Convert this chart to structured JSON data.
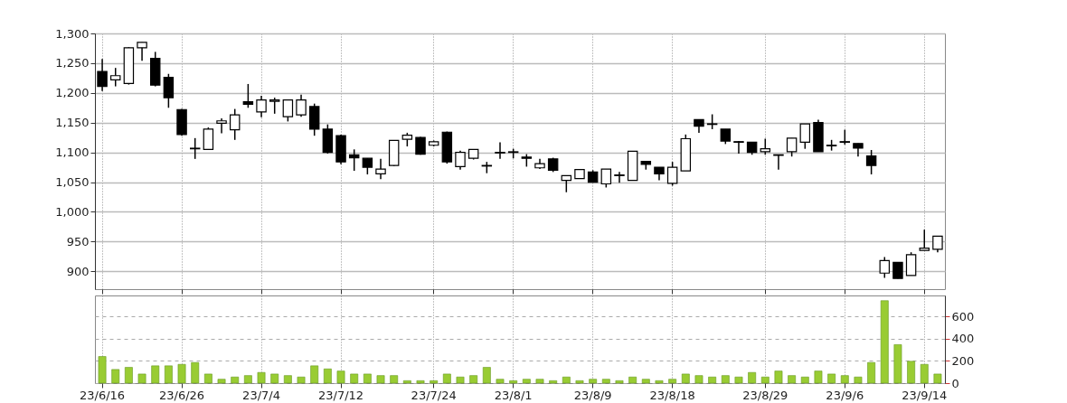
{
  "chart_data": [
    {
      "type": "candlestick",
      "categories": [
        "23/6/16",
        null,
        null,
        null,
        null,
        null,
        "23/6/26",
        null,
        null,
        null,
        null,
        null,
        "23/7/4",
        null,
        null,
        null,
        null,
        null,
        "23/7/12",
        null,
        null,
        null,
        null,
        null,
        null,
        "23/7/24",
        null,
        null,
        null,
        null,
        null,
        "23/8/1",
        null,
        null,
        null,
        null,
        null,
        "23/8/9",
        null,
        null,
        null,
        null,
        null,
        "23/8/18",
        null,
        null,
        null,
        null,
        null,
        null,
        "23/8/29",
        null,
        null,
        null,
        null,
        null,
        "23/9/6",
        null,
        null,
        null,
        null,
        null,
        "23/9/14",
        null
      ],
      "ohlc": [
        [
          1236,
          1257,
          1203,
          1211
        ],
        [
          1222,
          1242,
          1211,
          1229
        ],
        [
          1216,
          1277,
          1214,
          1276
        ],
        [
          1276,
          1285,
          1254,
          1285
        ],
        [
          1258,
          1269,
          1211,
          1213
        ],
        [
          1226,
          1232,
          1175,
          1192
        ],
        [
          1172,
          1173,
          1128,
          1130
        ],
        [
          1106,
          1124,
          1089,
          1107
        ],
        [
          1105,
          1142,
          1105,
          1139
        ],
        [
          1149,
          1157,
          1132,
          1153
        ],
        [
          1138,
          1173,
          1121,
          1163
        ],
        [
          1185,
          1215,
          1175,
          1181
        ],
        [
          1168,
          1195,
          1159,
          1188
        ],
        [
          1186,
          1192,
          1165,
          1188
        ],
        [
          1160,
          1188,
          1152,
          1188
        ],
        [
          1163,
          1197,
          1160,
          1188
        ],
        [
          1177,
          1182,
          1128,
          1139
        ],
        [
          1139,
          1147,
          1098,
          1100
        ],
        [
          1128,
          1130,
          1080,
          1084
        ],
        [
          1096,
          1105,
          1069,
          1091
        ],
        [
          1090,
          1090,
          1063,
          1075
        ],
        [
          1064,
          1089,
          1055,
          1072
        ],
        [
          1078,
          1120,
          1077,
          1120
        ],
        [
          1122,
          1133,
          1110,
          1129
        ],
        [
          1125,
          1126,
          1096,
          1097
        ],
        [
          1112,
          1120,
          1110,
          1118
        ],
        [
          1134,
          1135,
          1081,
          1084
        ],
        [
          1076,
          1103,
          1071,
          1100
        ],
        [
          1090,
          1105,
          1088,
          1105
        ],
        [
          1077,
          1084,
          1065,
          1078
        ],
        [
          1099,
          1117,
          1089,
          1100
        ],
        [
          1100,
          1106,
          1090,
          1101
        ],
        [
          1092,
          1097,
          1076,
          1090
        ],
        [
          1074,
          1089,
          1072,
          1081
        ],
        [
          1089,
          1091,
          1067,
          1070
        ],
        [
          1053,
          1061,
          1033,
          1061
        ],
        [
          1056,
          1071,
          1056,
          1071
        ],
        [
          1067,
          1070,
          1049,
          1050
        ],
        [
          1047,
          1072,
          1041,
          1072
        ],
        [
          1061,
          1067,
          1049,
          1062
        ],
        [
          1053,
          1102,
          1053,
          1102
        ],
        [
          1085,
          1085,
          1071,
          1080
        ],
        [
          1075,
          1075,
          1053,
          1064
        ],
        [
          1048,
          1084,
          1044,
          1075
        ],
        [
          1069,
          1130,
          1069,
          1123
        ],
        [
          1155,
          1155,
          1133,
          1144
        ],
        [
          1148,
          1164,
          1139,
          1147
        ],
        [
          1139,
          1139,
          1114,
          1119
        ],
        [
          1118,
          1119,
          1098,
          1117
        ],
        [
          1117,
          1117,
          1096,
          1100
        ],
        [
          1101,
          1123,
          1096,
          1106
        ],
        [
          1096,
          1096,
          1071,
          1095
        ],
        [
          1101,
          1124,
          1093,
          1124
        ],
        [
          1117,
          1148,
          1106,
          1148
        ],
        [
          1150,
          1155,
          1101,
          1101
        ],
        [
          1111,
          1121,
          1103,
          1112
        ],
        [
          1118,
          1138,
          1113,
          1117
        ],
        [
          1115,
          1115,
          1093,
          1107
        ],
        [
          1094,
          1104,
          1063,
          1078
        ],
        [
          897,
          924,
          889,
          918
        ],
        [
          915,
          915,
          888,
          888
        ],
        [
          893,
          932,
          893,
          928
        ],
        [
          935,
          970,
          935,
          939
        ],
        [
          937,
          959,
          932,
          959
        ]
      ],
      "ylim": [
        870,
        1300
      ],
      "yticks": [
        900,
        950,
        {
          "value": 1000,
          "label": "1,000"
        },
        {
          "value": 1050,
          "label": "1,050"
        },
        {
          "value": 1100,
          "label": "1,100"
        },
        {
          "value": 1150,
          "label": "1,150"
        },
        {
          "value": 1200,
          "label": "1,200"
        },
        {
          "value": 1250,
          "label": "1,250"
        },
        {
          "value": 1300,
          "label": "1,300"
        }
      ],
      "grid": true,
      "tick_labels": "y"
    },
    {
      "type": "bar",
      "categories": [
        "23/6/16",
        null,
        null,
        null,
        null,
        null,
        "23/6/26",
        null,
        null,
        null,
        null,
        null,
        "23/7/4",
        null,
        null,
        null,
        null,
        null,
        "23/7/12",
        null,
        null,
        null,
        null,
        null,
        null,
        "23/7/24",
        null,
        null,
        null,
        null,
        null,
        "23/8/1",
        null,
        null,
        null,
        null,
        null,
        "23/8/9",
        null,
        null,
        null,
        null,
        null,
        "23/8/18",
        null,
        null,
        null,
        null,
        null,
        null,
        "23/8/29",
        null,
        null,
        null,
        null,
        null,
        "23/9/6",
        null,
        null,
        null,
        null,
        null,
        "23/9/14",
        null
      ],
      "values": [
        240,
        123,
        142,
        82,
        156,
        156,
        169,
        186,
        82,
        35,
        55,
        68,
        96,
        82,
        68,
        55,
        156,
        128,
        109,
        82,
        82,
        68,
        68,
        22,
        22,
        22,
        82,
        55,
        68,
        142,
        35,
        22,
        35,
        35,
        22,
        55,
        22,
        35,
        35,
        22,
        55,
        35,
        22,
        35,
        82,
        68,
        55,
        68,
        55,
        96,
        55,
        109,
        68,
        55,
        109,
        82,
        68,
        55,
        186,
        743,
        347,
        197,
        169,
        82
      ],
      "color": "#99cc33",
      "ylim": [
        0,
        790
      ],
      "yticks": [
        0,
        200,
        400,
        600
      ],
      "grid": true
    }
  ]
}
